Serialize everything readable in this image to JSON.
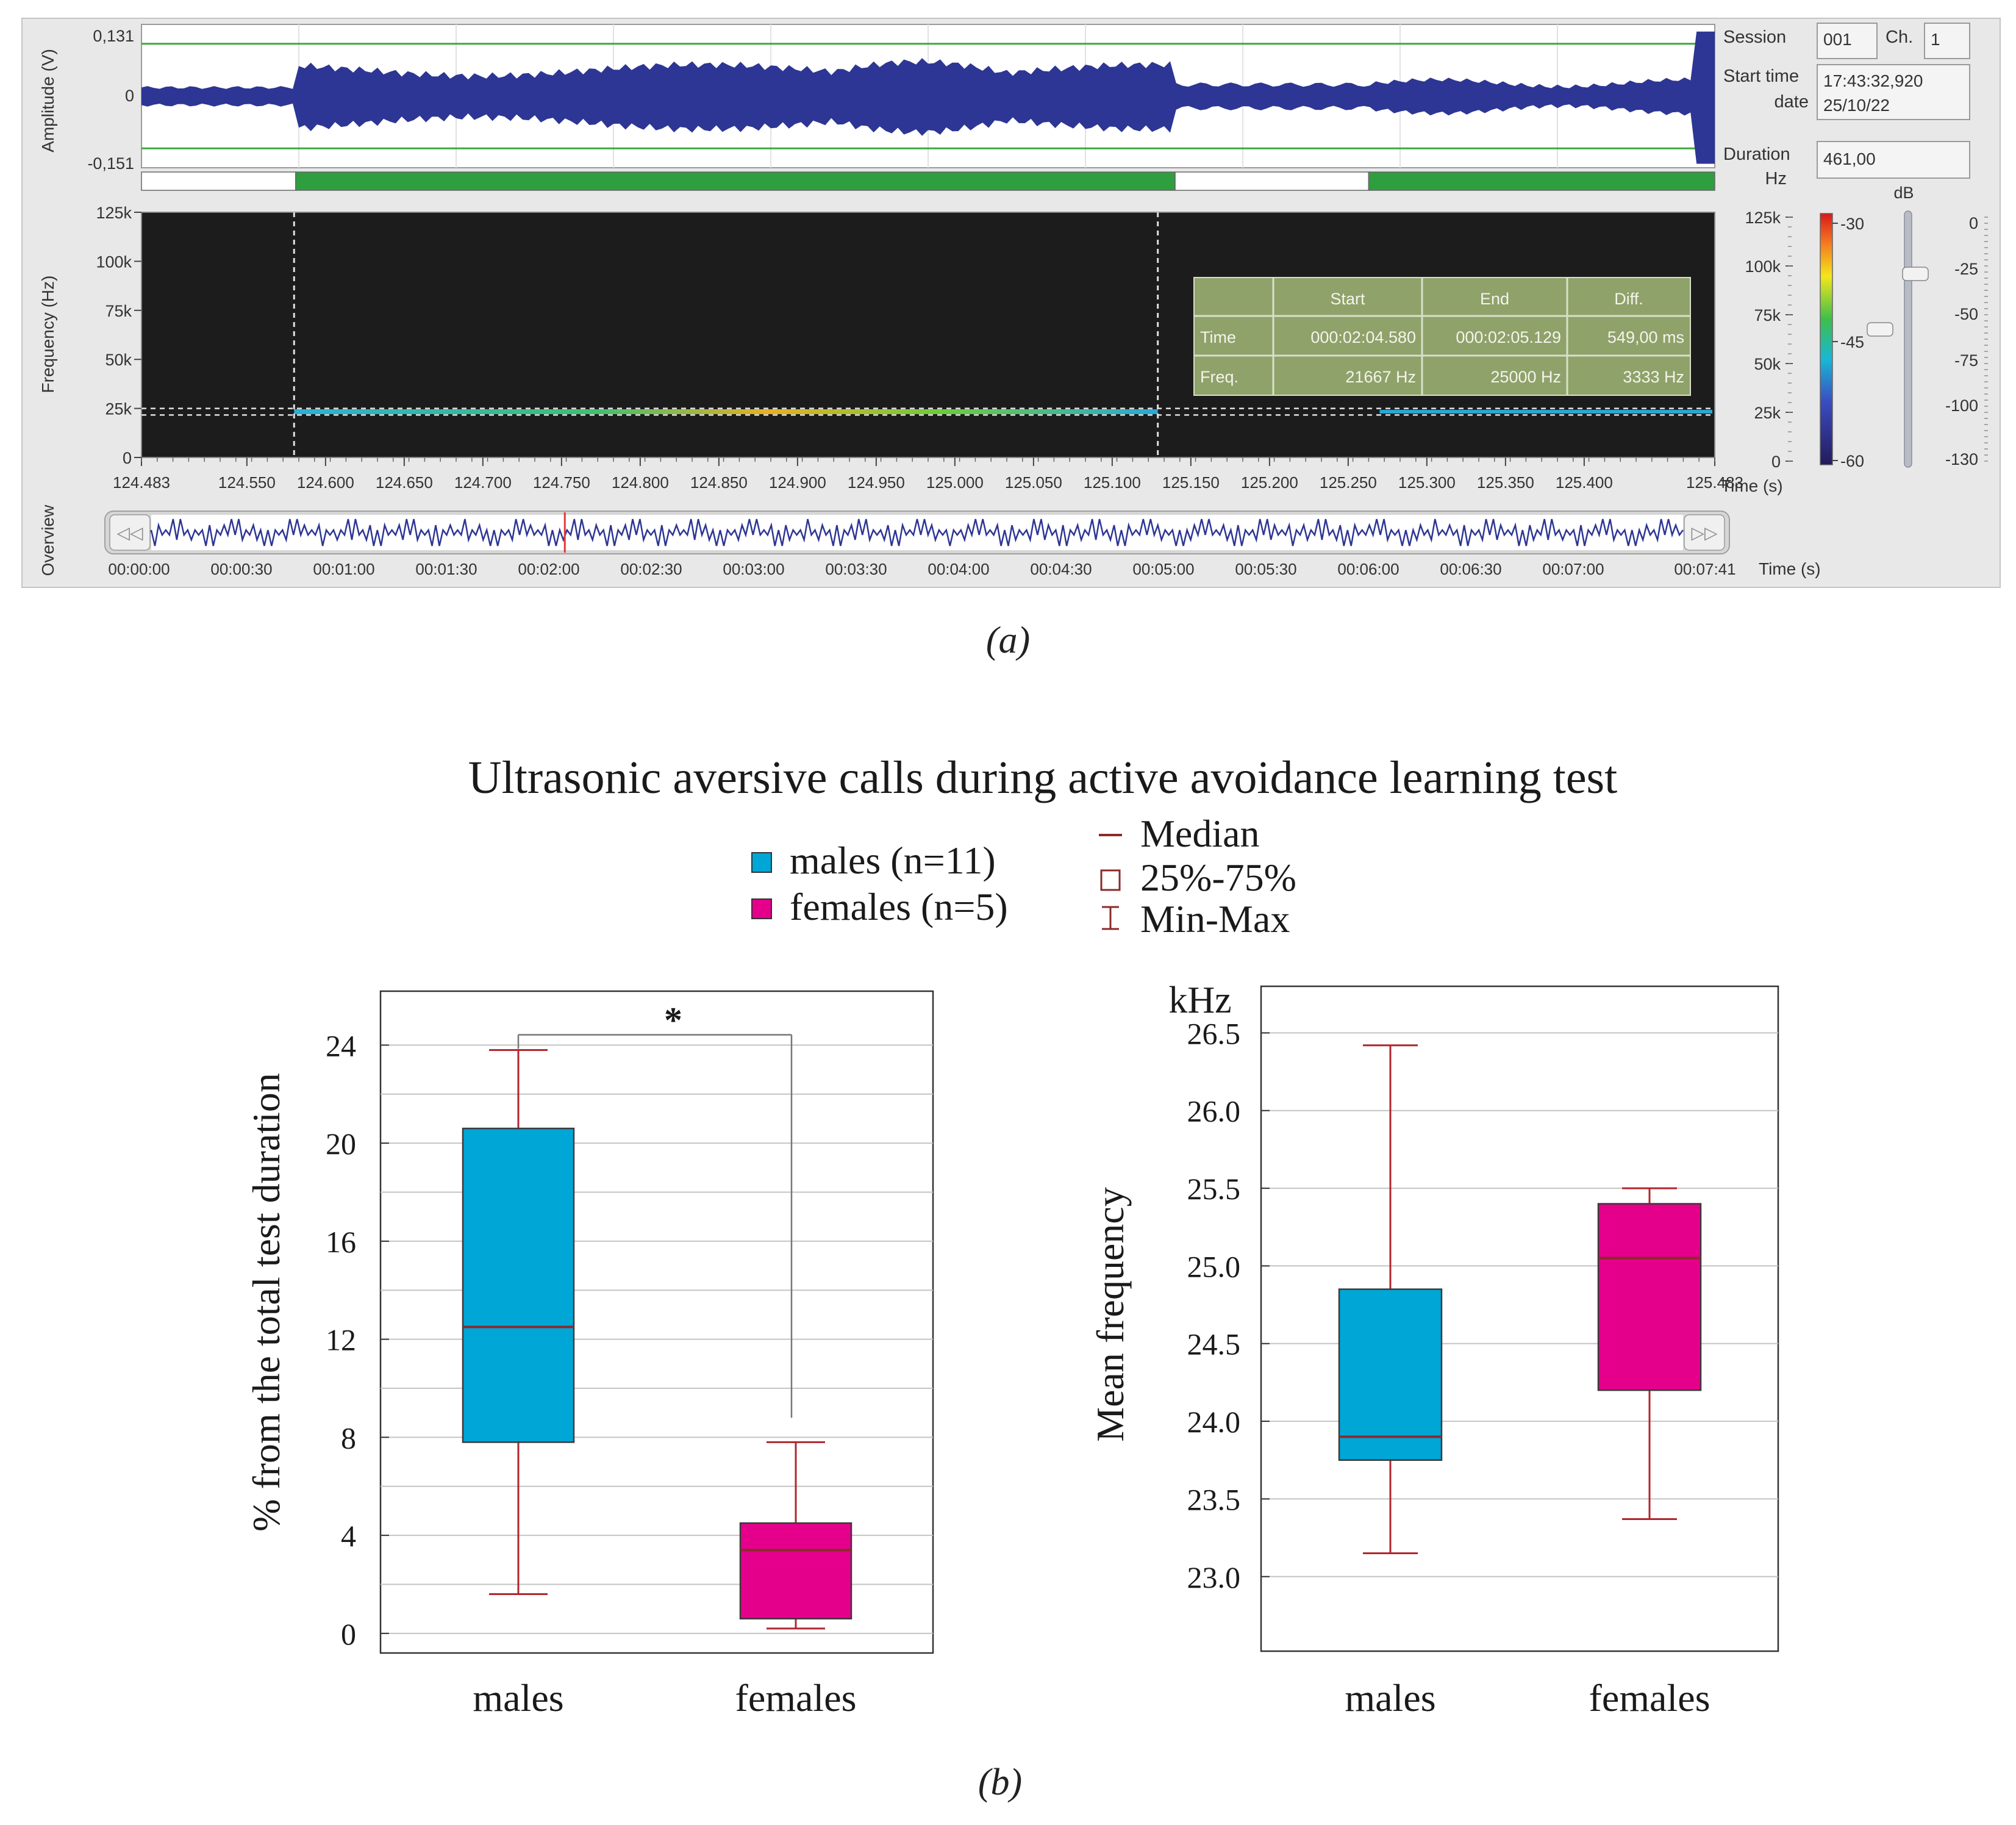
{
  "panel_a": {
    "caption": "(a)",
    "amplitude": {
      "ylabel": "Amplitude (V)",
      "ticks": [
        "0,131",
        "0",
        "-0,151"
      ],
      "threshold_frac": 0.73
    },
    "segments": [
      {
        "from": 0,
        "to": 0.098,
        "state": "off"
      },
      {
        "from": 0.098,
        "to": 0.657,
        "state": "on"
      },
      {
        "from": 0.657,
        "to": 0.78,
        "state": "off"
      },
      {
        "from": 0.78,
        "to": 1.0,
        "state": "on"
      }
    ],
    "session": {
      "session_label": "Session",
      "session_value": "001",
      "ch_label": "Ch.",
      "ch_value": "1",
      "start_label": "Start time",
      "start_value": "17:43:32,920",
      "date_label": "date",
      "date_value": "25/10/22",
      "duration_label": "Duration",
      "duration_value": "461,00",
      "hz_label": "Hz"
    },
    "spectrogram": {
      "ylabel": "Frequency (Hz)",
      "yticks": [
        {
          "label": "125k",
          "value": 125
        },
        {
          "label": "100k",
          "value": 100
        },
        {
          "label": "75k",
          "value": 75
        },
        {
          "label": "50k",
          "value": 50
        },
        {
          "label": "25k",
          "value": 25
        },
        {
          "label": "0",
          "value": 0
        }
      ],
      "ymax": 125,
      "xticks": [
        "124.483",
        "124.550",
        "124.600",
        "124.650",
        "124.700",
        "124.750",
        "124.800",
        "124.850",
        "124.900",
        "124.950",
        "125.000",
        "125.050",
        "125.100",
        "125.150",
        "125.200",
        "125.250",
        "125.300",
        "125.350",
        "125.400",
        "125.483"
      ],
      "xmin": 124.483,
      "xmax": 125.483,
      "time_label": "Time (s)",
      "cursor_start": 124.58,
      "cursor_end": 125.129,
      "cursor_freq_low": 21.667,
      "cursor_freq_high": 25.0,
      "table": {
        "headers": [
          "",
          "Start",
          "End",
          "Diff."
        ],
        "rows": [
          [
            "Time",
            "000:02:04.580",
            "000:02:05.129",
            "549,00 ms"
          ],
          [
            "Freq.",
            "21667 Hz",
            "25000 Hz",
            "3333 Hz"
          ]
        ]
      },
      "right_freq_ticks": [
        "125k",
        "100k",
        "75k",
        "50k",
        "25k",
        "0"
      ],
      "colorbar_ticks": [
        "-30",
        "-45",
        "-60"
      ],
      "db_label": "dB",
      "db_ticks": [
        "0",
        "-25",
        "-50",
        "-75",
        "-100",
        "-130"
      ]
    },
    "overview": {
      "label": "Overview",
      "xticks": [
        "00:00:00",
        "00:00:30",
        "00:01:00",
        "00:01:30",
        "00:02:00",
        "00:02:30",
        "00:03:00",
        "00:03:30",
        "00:04:00",
        "00:04:30",
        "00:05:00",
        "00:05:30",
        "00:06:00",
        "00:06:30",
        "00:07:00",
        "00:07:41"
      ],
      "time_label": "Time (s)",
      "marker_frac": 0.27,
      "prev_glyph": "◁◁",
      "next_glyph": "▷▷"
    }
  },
  "panel_b": {
    "caption": "(b)",
    "title": "Ultrasonic aversive calls during active avoidance learning test",
    "legend": {
      "males": "males (n=11)",
      "females": "females (n=5)",
      "median": "Median",
      "iqr": "25%-75%",
      "minmax": "Min-Max"
    },
    "colors": {
      "males": "#00a6d6",
      "females": "#e5008c",
      "whisker": "#b0272d",
      "median": "#8b2a2a"
    }
  },
  "chart_data": [
    {
      "type": "box",
      "title": "",
      "ylabel": "% from the total test duration",
      "ylim": [
        -0.8,
        26.2
      ],
      "yticks": [
        0,
        4,
        8,
        12,
        16,
        20,
        24
      ],
      "categories": [
        "males",
        "females"
      ],
      "series": [
        {
          "name": "males",
          "min": 1.6,
          "q1": 7.8,
          "median": 12.5,
          "q3": 20.6,
          "max": 23.8
        },
        {
          "name": "females",
          "min": 0.2,
          "q1": 0.6,
          "median": 3.4,
          "q3": 4.5,
          "max": 7.8
        }
      ],
      "annotation": "*"
    },
    {
      "type": "box",
      "title": "",
      "unit_label": "kHz",
      "ylabel": "Mean frequency",
      "ylim": [
        22.52,
        26.8
      ],
      "yticks": [
        "23.0",
        "23.5",
        "24.0",
        "24.5",
        "25.0",
        "25.5",
        "26.0",
        "26.5"
      ],
      "categories": [
        "males",
        "females"
      ],
      "series": [
        {
          "name": "males",
          "min": 23.15,
          "q1": 23.75,
          "median": 23.9,
          "q3": 24.85,
          "max": 26.42
        },
        {
          "name": "females",
          "min": 23.37,
          "q1": 24.2,
          "median": 25.05,
          "q3": 25.4,
          "max": 25.5
        }
      ]
    }
  ]
}
